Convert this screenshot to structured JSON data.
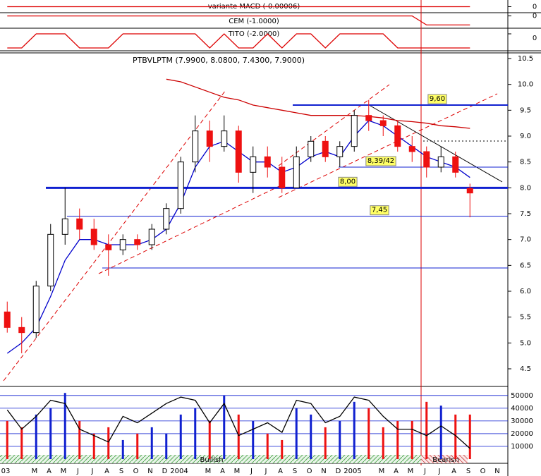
{
  "chart_data": {
    "type": "candlestick",
    "title": "PTBVLPTM (7.9900, 8.0800, 7.4300, 7.9000)",
    "categories": [
      "03",
      null,
      "M",
      "A",
      "M",
      "J",
      "J",
      "A",
      "S",
      "O",
      "N",
      "D",
      "2004",
      null,
      "M",
      "A",
      "M",
      "J",
      "J",
      "A",
      "S",
      "O",
      "N",
      "D",
      "2005",
      null,
      "M",
      "A",
      "M",
      "J",
      "J",
      "A",
      "S",
      "O",
      "N"
    ],
    "open": [
      5.6,
      5.3,
      5.2,
      6.1,
      7.1,
      7.4,
      7.2,
      6.9,
      6.8,
      7.0,
      6.9,
      7.2,
      7.6,
      8.5,
      9.1,
      8.8,
      9.1,
      8.3,
      8.6,
      8.4,
      8.0,
      8.6,
      8.9,
      8.6,
      8.8,
      9.4,
      9.3,
      9.2,
      8.8,
      8.7,
      8.4,
      8.6,
      7.99,
      null,
      null
    ],
    "high": [
      5.8,
      5.5,
      6.2,
      7.3,
      8.0,
      7.6,
      7.4,
      7.1,
      7.1,
      7.1,
      7.3,
      7.7,
      8.6,
      9.4,
      9.3,
      9.4,
      9.2,
      8.8,
      8.8,
      8.6,
      8.8,
      9.0,
      9.0,
      8.9,
      9.5,
      9.7,
      9.4,
      9.3,
      9.0,
      8.8,
      8.8,
      8.7,
      8.08,
      null,
      null
    ],
    "low": [
      5.2,
      4.8,
      5.1,
      6.0,
      6.9,
      7.0,
      6.8,
      6.3,
      6.7,
      6.8,
      6.8,
      7.1,
      7.5,
      8.3,
      8.5,
      8.7,
      8.1,
      7.9,
      8.2,
      7.9,
      8.0,
      8.5,
      8.5,
      8.4,
      8.7,
      9.1,
      9.0,
      8.7,
      8.5,
      8.2,
      8.3,
      8.2,
      7.43,
      null,
      null
    ],
    "close": [
      5.3,
      5.2,
      6.1,
      7.1,
      7.4,
      7.2,
      6.9,
      6.8,
      7.0,
      6.9,
      7.2,
      7.6,
      8.5,
      9.1,
      8.8,
      9.1,
      8.3,
      8.6,
      8.4,
      8.0,
      8.6,
      8.9,
      8.6,
      8.8,
      9.4,
      9.3,
      9.2,
      8.8,
      8.7,
      8.4,
      8.6,
      8.3,
      7.9,
      null,
      null
    ],
    "series": [
      {
        "color": "#0000cc",
        "values": [
          4.8,
          5.0,
          5.3,
          5.9,
          6.6,
          7.0,
          7.0,
          6.9,
          6.9,
          6.9,
          7.0,
          7.2,
          7.7,
          8.4,
          8.8,
          8.9,
          8.7,
          8.5,
          8.5,
          8.3,
          8.4,
          8.6,
          8.7,
          8.6,
          9.0,
          9.3,
          9.2,
          9.0,
          8.8,
          8.6,
          8.5,
          8.4,
          8.2,
          null,
          null
        ]
      },
      {
        "color": "#cc0000",
        "values": [
          null,
          null,
          null,
          null,
          null,
          null,
          null,
          null,
          null,
          null,
          null,
          10.1,
          10.05,
          9.95,
          9.85,
          9.75,
          9.7,
          9.6,
          9.55,
          9.5,
          9.45,
          9.4,
          9.4,
          9.4,
          9.4,
          9.38,
          9.35,
          9.3,
          9.28,
          9.25,
          9.2,
          9.18,
          9.15,
          null,
          null
        ]
      }
    ],
    "up_color": "#ffffff",
    "down_color": "#ee1111",
    "ylim": [
      4.5,
      10.5
    ],
    "yticks": [
      4.5,
      {
        "value": 5,
        "label": "5.0"
      },
      5.5,
      {
        "value": 6,
        "label": "6.0"
      },
      6.5,
      {
        "value": 7,
        "label": "7.0"
      },
      7.5,
      {
        "value": 8,
        "label": "8.0"
      },
      8.5,
      {
        "value": 9,
        "label": "9.0"
      },
      9.5,
      {
        "value": 10,
        "label": "10.0"
      },
      10.5
    ],
    "levels": [
      {
        "value": 9.6,
        "label": "9,60"
      },
      {
        "value": 8.4,
        "label": "8,39/42"
      },
      {
        "value": 8,
        "label": "8,00"
      },
      {
        "value": 7.45,
        "label": "7,45"
      },
      6.45
    ],
    "indicators": [
      {
        "title": "variante MACD (-0.00006)",
        "ylim": [
          -1,
          1
        ],
        "yticks": [
          0
        ],
        "values": [
          0,
          0,
          0,
          0,
          0,
          0,
          0,
          0,
          0,
          0,
          0,
          0,
          0,
          0,
          0,
          0,
          0,
          0,
          0,
          0,
          0,
          0,
          0,
          0,
          0,
          0,
          0,
          0,
          0,
          0,
          0,
          0,
          0,
          null,
          null
        ]
      },
      {
        "title": "CEM (-1.0000)",
        "ylim": [
          -1.2,
          0.2
        ],
        "yticks": [
          0
        ],
        "values": [
          0,
          0,
          0,
          0,
          0,
          0,
          0,
          0,
          0,
          0,
          0,
          0,
          0,
          0,
          0,
          0,
          0,
          0,
          0,
          0,
          0,
          0,
          0,
          0,
          0,
          0,
          0,
          0,
          0,
          -1,
          -1,
          -1,
          -1,
          null,
          null
        ]
      },
      {
        "title": "TITO (-2.0000)",
        "ylim": [
          -2.2,
          0.6
        ],
        "yticks": [
          0
        ],
        "values": [
          -2,
          -2,
          0,
          0,
          0,
          -2,
          -2,
          -2,
          0,
          0,
          0,
          0,
          0,
          0,
          -2,
          0,
          -2,
          -2,
          0,
          -2,
          0,
          0,
          -2,
          0,
          0,
          0,
          0,
          -2,
          -2,
          -2,
          -2,
          -2,
          -2,
          null,
          null
        ]
      }
    ],
    "volume": {
      "values": [
        30000,
        25000,
        35000,
        40000,
        52000,
        30000,
        20000,
        25000,
        15000,
        20000,
        25000,
        20000,
        35000,
        40000,
        30000,
        50000,
        35000,
        30000,
        20000,
        15000,
        40000,
        35000,
        25000,
        30000,
        45000,
        40000,
        25000,
        30000,
        30000,
        45000,
        42000,
        35000,
        35000,
        null,
        null
      ],
      "ylim": [
        0,
        56000
      ],
      "yticks": [
        10000,
        20000,
        30000,
        40000,
        50000
      ],
      "oscillator": [
        70,
        40,
        60,
        85,
        80,
        40,
        30,
        20,
        60,
        50,
        65,
        80,
        90,
        85,
        50,
        80,
        30,
        40,
        50,
        35,
        85,
        80,
        50,
        60,
        90,
        85,
        60,
        40,
        40,
        30,
        45,
        30,
        10,
        null,
        null
      ],
      "oscillator_ylim": [
        0,
        100
      ]
    },
    "regimes": [
      "Bullish",
      "Bearish"
    ]
  }
}
